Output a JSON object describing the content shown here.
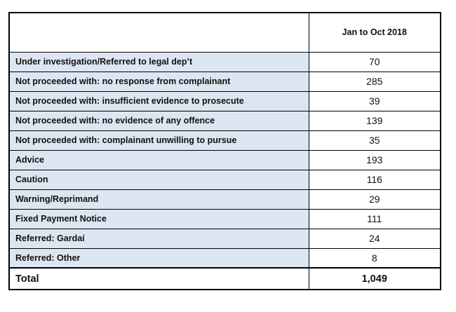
{
  "table": {
    "header": [
      "",
      "Jan to Oct 2018"
    ],
    "rows": [
      [
        "Under investigation/Referred to legal dep’t",
        "70"
      ],
      [
        "Not proceeded with: no response from complainant",
        "285"
      ],
      [
        "Not proceeded with: insufficient evidence to prosecute",
        "39"
      ],
      [
        "Not proceeded with: no evidence of any offence",
        "139"
      ],
      [
        "Not proceeded with: complainant unwilling to pursue",
        "35"
      ],
      [
        "Advice",
        "193"
      ],
      [
        "Caution",
        "116"
      ],
      [
        "Warning/Reprimand",
        "29"
      ],
      [
        "Fixed Payment Notice",
        "111"
      ],
      [
        "Referred: Gardaí",
        "24"
      ],
      [
        "Referred: Other",
        "8"
      ],
      [
        "Total",
        "1,049"
      ]
    ]
  }
}
